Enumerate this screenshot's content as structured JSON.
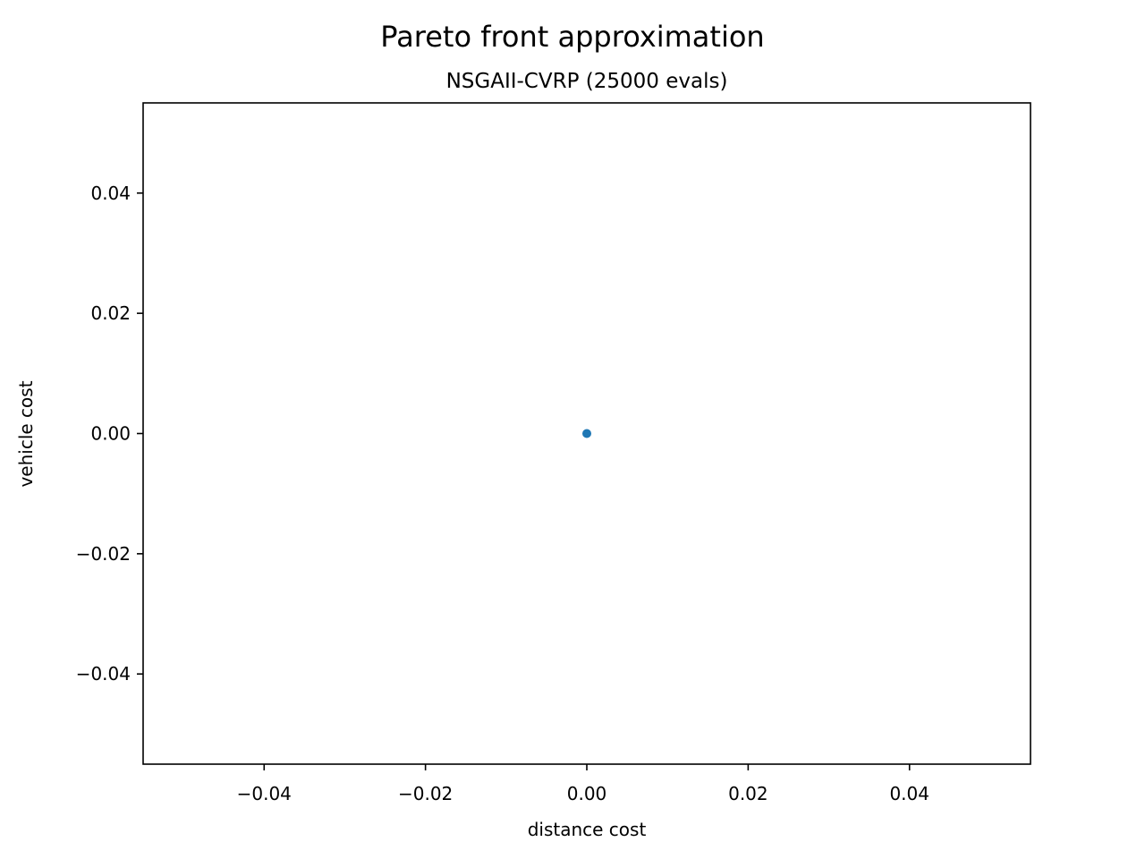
{
  "chart_data": {
    "type": "scatter",
    "suptitle": "Pareto front approximation",
    "title": "NSGAII-CVRP (25000 evals)",
    "xlabel": "distance cost",
    "ylabel": "vehicle cost",
    "xlim": [
      -0.055,
      0.055
    ],
    "ylim": [
      -0.055,
      0.055
    ],
    "xticks": [
      -0.04,
      -0.02,
      0.0,
      0.02,
      0.04
    ],
    "xtick_labels": [
      "−0.04",
      "−0.02",
      "0.00",
      "0.02",
      "0.04"
    ],
    "yticks": [
      -0.04,
      -0.02,
      0.0,
      0.02,
      0.04
    ],
    "ytick_labels": [
      "−0.04",
      "−0.02",
      "0.00",
      "0.02",
      "0.04"
    ],
    "grid": false,
    "series": [
      {
        "points": [
          {
            "x": 0.0,
            "y": 0.0
          }
        ],
        "color": "#1f77b4"
      }
    ]
  }
}
